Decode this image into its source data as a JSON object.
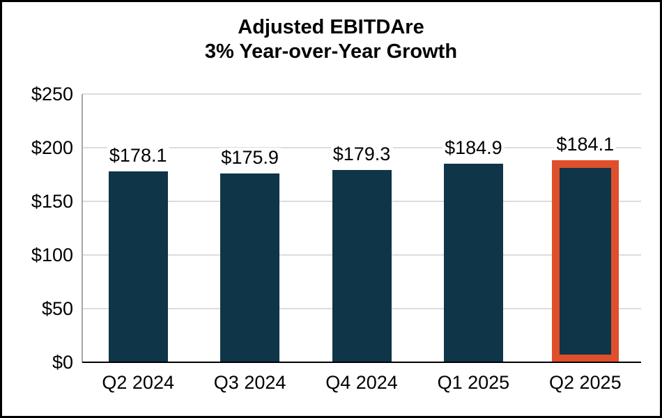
{
  "title": {
    "line1": "Adjusted EBITDAre",
    "line2": "3% Year-over-Year Growth"
  },
  "chart_data": {
    "type": "bar",
    "title": "Adjusted EBITDAre 3% Year-over-Year Growth",
    "categories": [
      "Q2 2024",
      "Q3 2024",
      "Q4 2024",
      "Q1 2025",
      "Q2 2025"
    ],
    "values": [
      178.1,
      175.9,
      179.3,
      184.9,
      184.1
    ],
    "value_labels": [
      "$178.1",
      "$175.9",
      "$179.3",
      "$184.9",
      "$184.1"
    ],
    "ylim": [
      0,
      250
    ],
    "y_ticks": [
      250,
      200,
      150,
      100,
      50,
      0
    ],
    "y_tick_labels": [
      "$250",
      "$200",
      "$150",
      "$100",
      "$50",
      "$0"
    ],
    "xlabel": "",
    "ylabel": "",
    "grid": true,
    "legend": "none",
    "highlighted_index": 4,
    "colors": {
      "bar": "#0F3549",
      "highlight_border": "#E04F2C",
      "gridline": "#DCDCDC",
      "y_axis_line": "#A6A6A6",
      "baseline": "#000000",
      "text": "#000000",
      "background": "#FFFFFF",
      "frame": "#000000"
    }
  }
}
